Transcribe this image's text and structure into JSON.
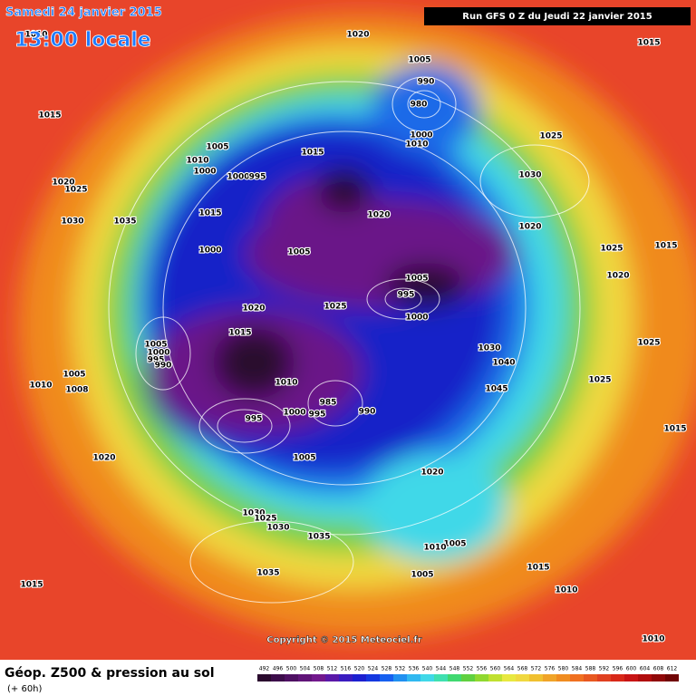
{
  "header": {
    "date": "Samedi 24 janvier 2015",
    "time": "13:00 locale",
    "run": "Run GFS 0 Z du Jeudi 22 janvier 2015"
  },
  "footer": {
    "title": "Géop. Z500 & pression au sol",
    "lead": "(+ 60h)",
    "copyright": "Copyright © 2015 Meteociel.fr"
  },
  "legend": {
    "values": [
      492,
      496,
      500,
      504,
      508,
      512,
      516,
      520,
      524,
      528,
      532,
      536,
      540,
      544,
      548,
      552,
      556,
      560,
      564,
      568,
      572,
      576,
      580,
      584,
      588,
      592,
      596,
      600,
      604,
      608,
      612
    ],
    "colors": [
      "#2a0a2e",
      "#3c0c4a",
      "#4e1062",
      "#601478",
      "#72188c",
      "#5a18a8",
      "#3a1cc0",
      "#1c20d0",
      "#1438e0",
      "#1660f0",
      "#2090f0",
      "#30b8f0",
      "#40d8e8",
      "#40e0b0",
      "#40d870",
      "#60d040",
      "#90d830",
      "#c0e030",
      "#e8e840",
      "#f0d840",
      "#f0c030",
      "#f0a428",
      "#f08c20",
      "#f07020",
      "#e85820",
      "#e04020",
      "#d82818",
      "#c81414",
      "#b00c0c",
      "#900808",
      "#700404"
    ]
  },
  "isobar_labels": [
    "1020",
    "1015",
    "1010",
    "1005",
    "990",
    "980",
    "1000",
    "1010",
    "1015",
    "1005",
    "1015",
    "1025",
    "1010",
    "1000",
    "1000",
    "995",
    "1030",
    "1025",
    "1020",
    "1015",
    "1020",
    "1020",
    "1030",
    "1035",
    "1000",
    "1005",
    "1025",
    "1015",
    "1020",
    "1005",
    "995",
    "1025",
    "1020",
    "1000",
    "1015",
    "1025",
    "1005",
    "1000",
    "995",
    "990",
    "1030",
    "1040",
    "1005",
    "1010",
    "1008",
    "1010",
    "1025",
    "1045",
    "985",
    "995",
    "990",
    "1000",
    "995",
    "1015",
    "1005",
    "1020",
    "1020",
    "1030",
    "1025",
    "1030",
    "1035",
    "1005",
    "1010",
    "1015",
    "1005",
    "1035",
    "1015",
    "1010",
    "1010"
  ]
}
